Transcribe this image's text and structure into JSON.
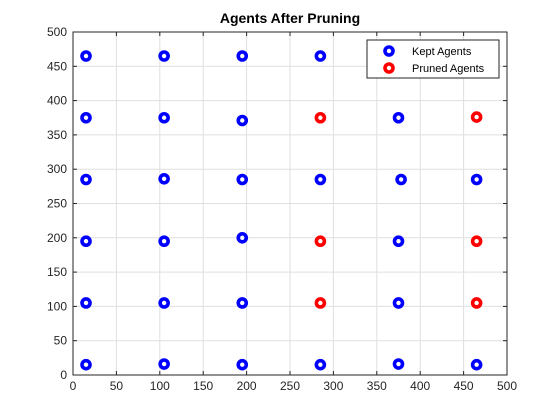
{
  "chart_data": {
    "type": "scatter",
    "title": "Agents After Pruning",
    "xlabel": "",
    "ylabel": "",
    "xlim": [
      0,
      500
    ],
    "ylim": [
      0,
      500
    ],
    "xticks": [
      0,
      50,
      100,
      150,
      200,
      250,
      300,
      350,
      400,
      450,
      500
    ],
    "yticks": [
      0,
      50,
      100,
      150,
      200,
      250,
      300,
      350,
      400,
      450,
      500
    ],
    "grid": true,
    "legend_position": "top-right",
    "series": [
      {
        "name": "Kept Agents",
        "color": "#0000ff",
        "points": [
          {
            "x": 15,
            "y": 465
          },
          {
            "x": 105,
            "y": 465
          },
          {
            "x": 195,
            "y": 465
          },
          {
            "x": 285,
            "y": 465
          },
          {
            "x": 15,
            "y": 375
          },
          {
            "x": 105,
            "y": 375
          },
          {
            "x": 195,
            "y": 371
          },
          {
            "x": 375,
            "y": 375
          },
          {
            "x": 15,
            "y": 285
          },
          {
            "x": 105,
            "y": 286
          },
          {
            "x": 195,
            "y": 285
          },
          {
            "x": 285,
            "y": 285
          },
          {
            "x": 378,
            "y": 285
          },
          {
            "x": 465,
            "y": 285
          },
          {
            "x": 15,
            "y": 195
          },
          {
            "x": 105,
            "y": 195
          },
          {
            "x": 195,
            "y": 200
          },
          {
            "x": 375,
            "y": 195
          },
          {
            "x": 15,
            "y": 105
          },
          {
            "x": 105,
            "y": 105
          },
          {
            "x": 195,
            "y": 105
          },
          {
            "x": 375,
            "y": 105
          },
          {
            "x": 15,
            "y": 15
          },
          {
            "x": 105,
            "y": 16
          },
          {
            "x": 195,
            "y": 15
          },
          {
            "x": 285,
            "y": 15
          },
          {
            "x": 375,
            "y": 16
          },
          {
            "x": 465,
            "y": 15
          }
        ]
      },
      {
        "name": "Pruned Agents",
        "color": "#ff0000",
        "points": [
          {
            "x": 285,
            "y": 375
          },
          {
            "x": 465,
            "y": 376
          },
          {
            "x": 285,
            "y": 195
          },
          {
            "x": 465,
            "y": 195
          },
          {
            "x": 285,
            "y": 105
          },
          {
            "x": 465,
            "y": 105
          }
        ]
      }
    ]
  }
}
